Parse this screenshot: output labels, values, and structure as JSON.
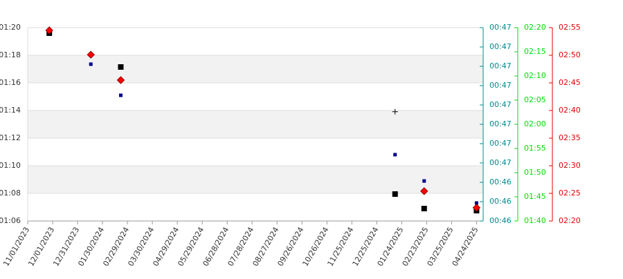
{
  "chart_data": {
    "type": "scatter",
    "x": [
      "11/27/2023",
      "01/16/2024",
      "02/21/2024",
      "01/16/2025",
      "02/20/2025",
      "04/24/2025"
    ],
    "xlim": [
      "11/01/2023",
      "05/02/2025"
    ],
    "xticks": [
      "11/01/2023",
      "12/01/2023",
      "12/31/2023",
      "01/30/2024",
      "02/29/2024",
      "03/30/2024",
      "04/29/2024",
      "05/29/2024",
      "06/28/2024",
      "07/28/2024",
      "08/27/2024",
      "09/26/2024",
      "10/26/2024",
      "11/25/2024",
      "12/25/2024",
      "01/24/2025",
      "02/23/2025",
      "03/25/2025",
      "04/24/2025"
    ],
    "ylim": [
      66,
      80
    ],
    "yticks": [
      {
        "value": 66,
        "label": "01:06"
      },
      {
        "value": 68,
        "label": "01:08"
      },
      {
        "value": 70,
        "label": "01:10"
      },
      {
        "value": 72,
        "label": "01:12"
      },
      {
        "value": 74,
        "label": "01:14"
      },
      {
        "value": 76,
        "label": "01:16"
      },
      {
        "value": 78,
        "label": "01:18"
      },
      {
        "value": 80,
        "label": "01:20"
      }
    ],
    "y2lim": [
      46.7,
      47.7
    ],
    "y2ticks": [
      {
        "value": 46.7,
        "label": "00:46"
      },
      {
        "value": 46.8,
        "label": "00:46"
      },
      {
        "value": 46.9,
        "label": "00:46"
      },
      {
        "value": 47.0,
        "label": "00:47"
      },
      {
        "value": 47.1,
        "label": "00:47"
      },
      {
        "value": 47.2,
        "label": "00:47"
      },
      {
        "value": 47.3,
        "label": "00:47"
      },
      {
        "value": 47.4,
        "label": "00:47"
      },
      {
        "value": 47.5,
        "label": "00:47"
      },
      {
        "value": 47.6,
        "label": "00:47"
      },
      {
        "value": 47.7,
        "label": "00:47"
      }
    ],
    "y2color": "#008b8b",
    "y3lim": [
      100,
      140
    ],
    "y3ticks": [
      {
        "value": 100,
        "label": "01:40"
      },
      {
        "value": 105,
        "label": "01:45"
      },
      {
        "value": 110,
        "label": "01:50"
      },
      {
        "value": 115,
        "label": "01:55"
      },
      {
        "value": 120,
        "label": "02:00"
      },
      {
        "value": 125,
        "label": "02:05"
      },
      {
        "value": 130,
        "label": "02:10"
      },
      {
        "value": 135,
        "label": "02:15"
      },
      {
        "value": 140,
        "label": "02:20"
      }
    ],
    "y3color": "#00dd00",
    "y4lim": [
      140,
      175
    ],
    "y4ticks": [
      {
        "value": 140,
        "label": "02:20"
      },
      {
        "value": 145,
        "label": "02:25"
      },
      {
        "value": 150,
        "label": "02:30"
      },
      {
        "value": 155,
        "label": "02:35"
      },
      {
        "value": 160,
        "label": "02:40"
      },
      {
        "value": 165,
        "label": "02:45"
      },
      {
        "value": 170,
        "label": "02:50"
      },
      {
        "value": 175,
        "label": "02:55"
      }
    ],
    "y4color": "#e00000",
    "grid": true,
    "series": [
      {
        "axis": "y",
        "marker": "square",
        "color": "#000000",
        "values": [
          79.6,
          null,
          77.15,
          67.95,
          66.9,
          66.75
        ]
      },
      {
        "axis": "y2",
        "marker": "small-square",
        "color": "#00008b",
        "values": [
          null,
          47.511,
          47.35,
          47.043,
          46.907,
          46.793
        ]
      },
      {
        "axis": "y4",
        "marker": "diamond",
        "color": "#ff0000",
        "values": [
          174.5,
          170.1,
          165.5,
          null,
          145.4,
          142.4
        ]
      },
      {
        "axis": "y3",
        "marker": "plus",
        "color": "#000000",
        "values": [
          null,
          null,
          null,
          122.6,
          null,
          null
        ]
      }
    ]
  }
}
